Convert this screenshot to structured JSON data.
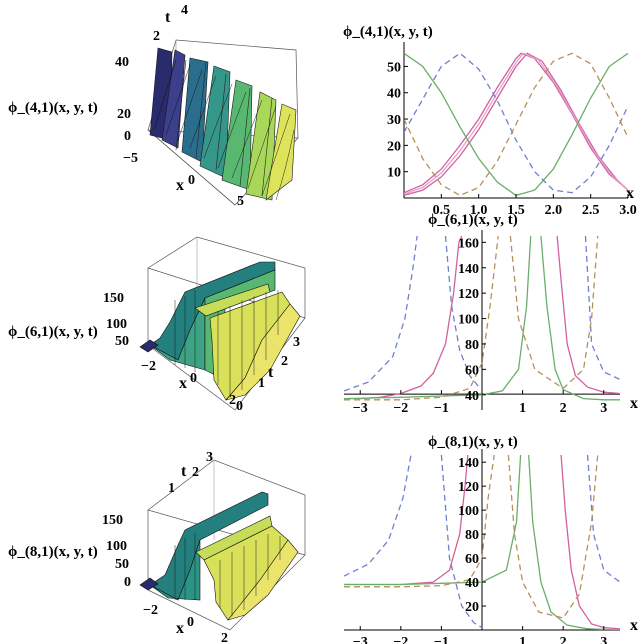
{
  "figure": {
    "panels_3d": [
      {
        "func_label": "ϕ_(4,1)(x, y, t)",
        "axis_t": {
          "label": "t",
          "ticks": [
            "2",
            "4"
          ]
        },
        "axis_z": {
          "ticks": [
            "40",
            "20",
            "0"
          ]
        },
        "axis_x": {
          "label": "x",
          "ticks": [
            "−5",
            "0",
            "5"
          ]
        }
      },
      {
        "func_label": "ϕ_(6,1)(x, y, t)",
        "axis_z": {
          "ticks": [
            "150",
            "100",
            "50"
          ]
        },
        "axis_x": {
          "label": "x",
          "ticks": [
            "−2",
            "0",
            "2"
          ]
        },
        "axis_t": {
          "label": "t",
          "ticks": [
            "3",
            "2",
            "1",
            "0"
          ]
        }
      },
      {
        "func_label": "ϕ_(8,1)(x, y, t)",
        "axis_t": {
          "label": "t",
          "ticks": [
            "1",
            "2",
            "3"
          ]
        },
        "axis_z": {
          "ticks": [
            "150",
            "100",
            "50",
            "0"
          ]
        },
        "axis_x": {
          "label": "x",
          "ticks": [
            "−2",
            "0",
            "2"
          ]
        }
      }
    ]
  },
  "chart_data": [
    {
      "type": "line",
      "title": "ϕ_(4,1)(x, y, t)",
      "xlabel": "x",
      "xlim": [
        0,
        3.0
      ],
      "ylim": [
        0,
        57
      ],
      "xticks": [
        "0.5",
        "1.0",
        "1.5",
        "2.0",
        "2.5",
        "3.0"
      ],
      "yticks": [
        "10",
        "20",
        "30",
        "40",
        "50"
      ],
      "series": [
        {
          "color": "#d1609e",
          "dash": false,
          "x": [
            0,
            0.25,
            0.5,
            0.75,
            1.0,
            1.25,
            1.5,
            1.57,
            1.75,
            2.0,
            2.25,
            2.5,
            2.75,
            3.0
          ],
          "y": [
            2,
            5,
            11,
            20,
            30,
            42,
            53,
            55,
            53,
            44,
            32,
            19,
            9,
            3
          ]
        },
        {
          "color": "#d1609e",
          "dash": false,
          "x": [
            0,
            0.25,
            0.5,
            0.75,
            1.0,
            1.25,
            1.5,
            1.65,
            1.85,
            2.1,
            2.35,
            2.6,
            2.85,
            3.0
          ],
          "y": [
            1,
            3,
            8,
            16,
            26,
            38,
            50,
            55,
            52,
            41,
            28,
            16,
            7,
            3
          ]
        },
        {
          "color": "#e2a3ca",
          "dash": false,
          "x": [
            0,
            0.25,
            0.5,
            0.75,
            1.0,
            1.25,
            1.5,
            1.6,
            1.8,
            2.05,
            2.3,
            2.55,
            2.8,
            3.0
          ],
          "y": [
            1.5,
            4,
            9.5,
            18,
            28,
            40,
            51.5,
            55,
            52.5,
            42.5,
            30,
            17.5,
            8,
            3
          ]
        },
        {
          "color": "#6aae6a",
          "dash": false,
          "x": [
            0,
            0.25,
            0.5,
            0.75,
            1.0,
            1.25,
            1.5,
            1.75,
            2.0,
            2.25,
            2.5,
            2.75,
            3.0
          ],
          "y": [
            55,
            50,
            40,
            27,
            15,
            6,
            1,
            3,
            11,
            24,
            38,
            50,
            55
          ]
        },
        {
          "color": "#6f7fd0",
          "dash": true,
          "x": [
            0,
            0.2,
            0.5,
            0.75,
            1.0,
            1.25,
            1.5,
            1.75,
            2.0,
            2.25,
            2.5,
            2.75,
            3.0
          ],
          "y": [
            25,
            35,
            50,
            55,
            49,
            37,
            22,
            10,
            3,
            2,
            8,
            20,
            35
          ]
        },
        {
          "color": "#b5915c",
          "dash": true,
          "x": [
            0,
            0.25,
            0.5,
            0.75,
            1.0,
            1.25,
            1.5,
            1.75,
            2.0,
            2.25,
            2.5,
            2.75,
            3.0
          ],
          "y": [
            30,
            15,
            5,
            1,
            4,
            14,
            28,
            42,
            52,
            55,
            51,
            38,
            23
          ]
        }
      ]
    },
    {
      "type": "line",
      "title": "ϕ_(6,1)(x, y, t)",
      "xlabel": "x",
      "xlim": [
        -3.4,
        3.4
      ],
      "ylim": [
        28,
        165
      ],
      "xticks": [
        "−3",
        "−2",
        "−1",
        "1",
        "2",
        "3"
      ],
      "yticks": [
        "40",
        "60",
        "80",
        "100",
        "120",
        "140",
        "160"
      ],
      "series": [
        {
          "color": "#d1609e",
          "dash": false,
          "x": [
            -3.4,
            -3.0,
            -2.5,
            -2.0,
            -1.5,
            -1.2,
            -0.9,
            -0.7,
            -0.57,
            -0.5
          ],
          "y": [
            37,
            37,
            38,
            41,
            47,
            57,
            80,
            120,
            160,
            165
          ]
        },
        {
          "color": "#d1609e",
          "dash": false,
          "x": [
            1.85,
            1.95,
            2.1,
            2.3,
            2.6,
            3.0,
            3.4
          ],
          "y": [
            165,
            130,
            80,
            55,
            46,
            42,
            41
          ]
        },
        {
          "color": "#6aae6a",
          "dash": false,
          "x": [
            -3.4,
            -2.0,
            -1.0,
            0,
            0.5,
            0.9,
            1.1,
            1.2
          ],
          "y": [
            37,
            38,
            39,
            40,
            43,
            60,
            110,
            165
          ]
        },
        {
          "color": "#6aae6a",
          "dash": false,
          "x": [
            1.45,
            1.6,
            1.8,
            2.0,
            2.5,
            3.0,
            3.4
          ],
          "y": [
            165,
            110,
            60,
            44,
            37,
            36,
            36
          ]
        },
        {
          "color": "#6f7fd0",
          "dash": true,
          "x": [
            -3.4,
            -2.8,
            -2.2,
            -1.9,
            -1.7,
            -1.6
          ],
          "y": [
            43,
            50,
            70,
            100,
            140,
            165
          ]
        },
        {
          "color": "#6f7fd0",
          "dash": true,
          "x": [
            -0.9,
            -0.75,
            -0.55,
            -0.3,
            -0.05
          ],
          "y": [
            165,
            110,
            75,
            55,
            45
          ]
        },
        {
          "color": "#6f7fd0",
          "dash": true,
          "x": [
            2.55,
            2.7,
            3.0,
            3.4
          ],
          "y": [
            165,
            80,
            58,
            52
          ]
        },
        {
          "color": "#b5915c",
          "dash": true,
          "x": [
            -3.4,
            -2.0,
            -1.0,
            -0.3,
            0,
            0.2,
            0.4
          ],
          "y": [
            36,
            36,
            38,
            45,
            65,
            110,
            165
          ]
        },
        {
          "color": "#b5915c",
          "dash": true,
          "x": [
            0.7,
            0.9,
            1.3,
            2.0,
            2.5,
            2.7,
            2.85
          ],
          "y": [
            165,
            100,
            60,
            45,
            60,
            100,
            165
          ]
        }
      ]
    },
    {
      "type": "line",
      "title": "ϕ_(8,1)(x, y, t)",
      "xlabel": "x",
      "xlim": [
        -3.4,
        3.4
      ],
      "ylim": [
        0,
        146
      ],
      "xticks": [
        "−3",
        "−2",
        "−1",
        "1",
        "2",
        "3"
      ],
      "yticks": [
        "20",
        "40",
        "60",
        "80",
        "100",
        "120",
        "140"
      ],
      "series": [
        {
          "color": "#d1609e",
          "dash": false,
          "x": [
            -3.4,
            -2.0,
            -1.2,
            -0.8,
            -0.55,
            -0.42,
            -0.35
          ],
          "y": [
            38,
            38,
            40,
            50,
            80,
            120,
            146
          ]
        },
        {
          "color": "#d1609e",
          "dash": false,
          "x": [
            1.95,
            2.05,
            2.2,
            2.4,
            2.7,
            3.0,
            3.4
          ],
          "y": [
            146,
            100,
            50,
            20,
            5,
            2,
            1
          ]
        },
        {
          "color": "#6aae6a",
          "dash": false,
          "x": [
            -3.4,
            -2.0,
            -1.0,
            0,
            0.6,
            0.85,
            0.95
          ],
          "y": [
            38,
            38,
            39,
            40,
            50,
            90,
            146
          ]
        },
        {
          "color": "#6aae6a",
          "dash": false,
          "x": [
            1.15,
            1.25,
            1.45,
            1.7,
            2.1,
            2.6,
            3.4
          ],
          "y": [
            146,
            90,
            40,
            15,
            4,
            1,
            0
          ]
        },
        {
          "color": "#6f7fd0",
          "dash": true,
          "x": [
            -3.4,
            -2.8,
            -2.3,
            -1.95,
            -1.75
          ],
          "y": [
            45,
            55,
            75,
            110,
            146
          ]
        },
        {
          "color": "#6f7fd0",
          "dash": true,
          "x": [
            -1.0,
            -0.8,
            -0.5,
            -0.2,
            0
          ],
          "y": [
            146,
            60,
            20,
            6,
            2
          ]
        },
        {
          "color": "#6f7fd0",
          "dash": true,
          "x": [
            2.6,
            2.75,
            3.0,
            3.4
          ],
          "y": [
            146,
            80,
            50,
            40
          ]
        },
        {
          "color": "#b5915c",
          "dash": true,
          "x": [
            -3.4,
            -2.0,
            -1.0,
            -0.3,
            0,
            0.15,
            0.3
          ],
          "y": [
            36,
            36,
            37,
            42,
            60,
            110,
            146
          ]
        },
        {
          "color": "#b5915c",
          "dash": true,
          "x": [
            0.65,
            0.8,
            1.0,
            1.4,
            2.0,
            2.4,
            2.7,
            2.85
          ],
          "y": [
            146,
            80,
            40,
            15,
            10,
            30,
            90,
            146
          ]
        }
      ]
    }
  ]
}
